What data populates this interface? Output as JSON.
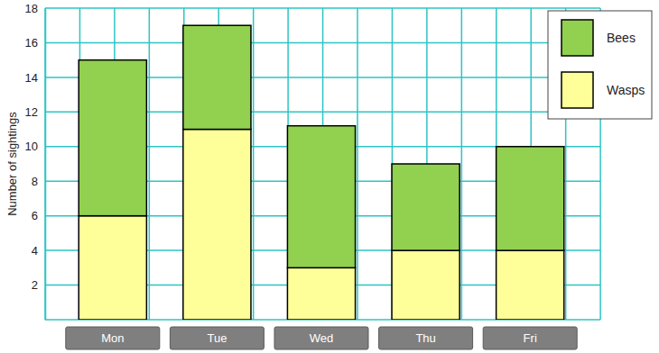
{
  "chart_data": {
    "type": "bar",
    "stacked": true,
    "y_label": "Number of sightings",
    "categories": [
      "Mon",
      "Tue",
      "Wed",
      "Thu",
      "Fri"
    ],
    "series": [
      {
        "name": "Wasps",
        "color": "#ffff99",
        "values": [
          6,
          11,
          3,
          4,
          4
        ]
      },
      {
        "name": "Bees",
        "color": "#92d050",
        "values": [
          9,
          6,
          8.2,
          5,
          6
        ]
      }
    ],
    "ylim": [
      0,
      18
    ],
    "yticks": [
      2,
      4,
      6,
      8,
      10,
      12,
      14,
      16,
      18
    ],
    "grid": true,
    "legend": "top-right"
  }
}
